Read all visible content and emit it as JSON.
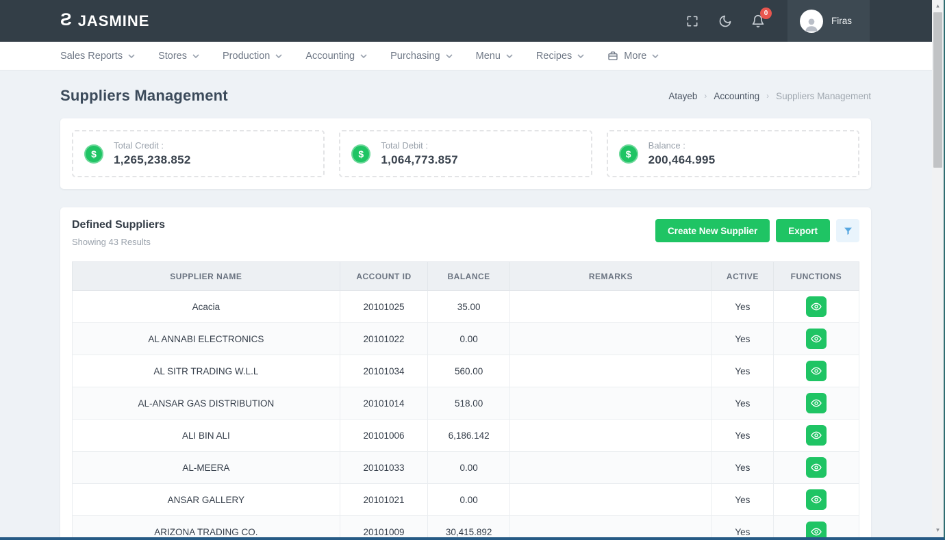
{
  "header": {
    "brand": "JASMINE",
    "user_name": "Firas",
    "notification_count": "0"
  },
  "nav": {
    "items": [
      {
        "label": "Sales Reports"
      },
      {
        "label": "Stores"
      },
      {
        "label": "Production"
      },
      {
        "label": "Accounting"
      },
      {
        "label": "Purchasing"
      },
      {
        "label": "Menu"
      },
      {
        "label": "Recipes"
      },
      {
        "label": "More",
        "icon": "briefcase-icon"
      }
    ]
  },
  "page": {
    "title": "Suppliers Management",
    "breadcrumb": [
      "Atayeb",
      "Accounting",
      "Suppliers Management"
    ]
  },
  "stats": [
    {
      "icon": "dollar-icon",
      "label": "Total Credit :",
      "value": "1,265,238.852"
    },
    {
      "icon": "dollar-icon",
      "label": "Total Debit :",
      "value": "1,064,773.857"
    },
    {
      "icon": "dollar-icon",
      "label": "Balance :",
      "value": "200,464.995"
    }
  ],
  "suppliers_panel": {
    "title": "Defined Suppliers",
    "subtitle": "Showing 43 Results",
    "create_button": "Create New Supplier",
    "export_button": "Export",
    "filter_icon": "filter-funnel-icon",
    "table": {
      "headers": [
        "SUPPLIER NAME",
        "ACCOUNT ID",
        "BALANCE",
        "REMARKS",
        "ACTIVE",
        "FUNCTIONS"
      ],
      "rows": [
        {
          "supplier_name": "Acacia",
          "account_id": "20101025",
          "balance": "35.00",
          "remarks": "",
          "active": "Yes"
        },
        {
          "supplier_name": "AL ANNABI ELECTRONICS",
          "account_id": "20101022",
          "balance": "0.00",
          "remarks": "",
          "active": "Yes"
        },
        {
          "supplier_name": "AL SITR TRADING W.L.L",
          "account_id": "20101034",
          "balance": "560.00",
          "remarks": "",
          "active": "Yes"
        },
        {
          "supplier_name": "AL-ANSAR GAS DISTRIBUTION",
          "account_id": "20101014",
          "balance": "518.00",
          "remarks": "",
          "active": "Yes"
        },
        {
          "supplier_name": "ALI BIN ALI",
          "account_id": "20101006",
          "balance": "6,186.142",
          "remarks": "",
          "active": "Yes"
        },
        {
          "supplier_name": "AL-MEERA",
          "account_id": "20101033",
          "balance": "0.00",
          "remarks": "",
          "active": "Yes"
        },
        {
          "supplier_name": "ANSAR GALLERY",
          "account_id": "20101021",
          "balance": "0.00",
          "remarks": "",
          "active": "Yes"
        },
        {
          "supplier_name": "ARIZONA TRADING CO.",
          "account_id": "20101009",
          "balance": "30,415.892",
          "remarks": "",
          "active": "Yes"
        }
      ]
    }
  },
  "colors": {
    "accent_green": "#1fc464",
    "header_bg": "#333e47",
    "badge_red": "#e8564f",
    "filter_blue": "#57a7e0"
  }
}
